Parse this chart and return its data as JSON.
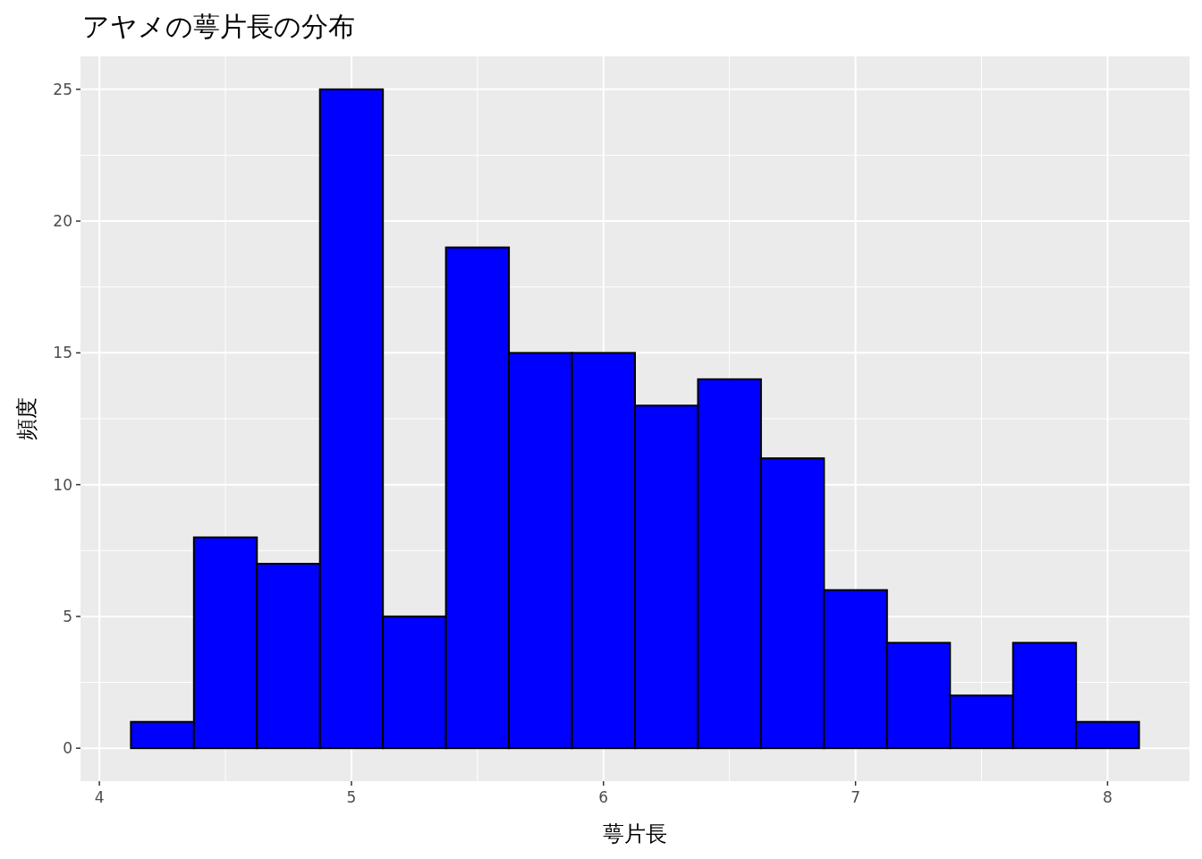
{
  "chart_data": {
    "type": "histogram",
    "title": "アヤメの萼片長の分布",
    "xlabel": "萼片長",
    "ylabel": "頻度",
    "bins": [
      4.125,
      4.375,
      4.625,
      4.875,
      5.125,
      5.375,
      5.625,
      5.875,
      6.125,
      6.375,
      6.625,
      6.875,
      7.125,
      7.375,
      7.625,
      7.875,
      8.125
    ],
    "values": [
      1,
      8,
      7,
      25,
      5,
      19,
      15,
      15,
      13,
      14,
      11,
      6,
      4,
      2,
      4,
      1
    ],
    "color": "#0000ff",
    "xlim": [
      3.925,
      8.325
    ],
    "xticks": [
      4,
      5,
      6,
      7,
      8
    ],
    "ylim": [
      -1.25,
      26.25
    ],
    "yticks": [
      0,
      5,
      10,
      15,
      20,
      25
    ],
    "grid": true
  }
}
